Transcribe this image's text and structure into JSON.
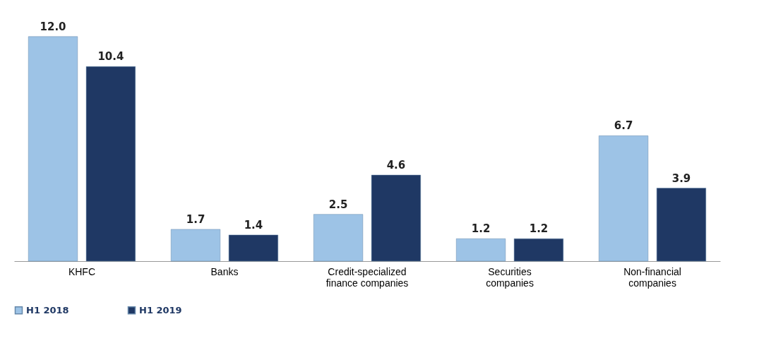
{
  "chart_data": {
    "type": "bar",
    "categories": [
      "KHFC",
      "Banks",
      "Credit-specialized finance companies",
      "Securities companies",
      "Non-financial companies"
    ],
    "series": [
      {
        "name": "H1 2018",
        "color": "#9dc3e6",
        "values": [
          12.0,
          1.7,
          2.5,
          1.2,
          6.7
        ],
        "value_labels": [
          "12.0",
          "1.7",
          "2.5",
          "1.2",
          "6.7"
        ]
      },
      {
        "name": "H1 2019",
        "color": "#1f3864",
        "values": [
          10.4,
          1.4,
          4.6,
          1.2,
          3.9
        ],
        "value_labels": [
          "10.4",
          "1.4",
          "4.6",
          "1.2",
          "3.9"
        ]
      }
    ],
    "legend": "bottom",
    "grid": false
  }
}
